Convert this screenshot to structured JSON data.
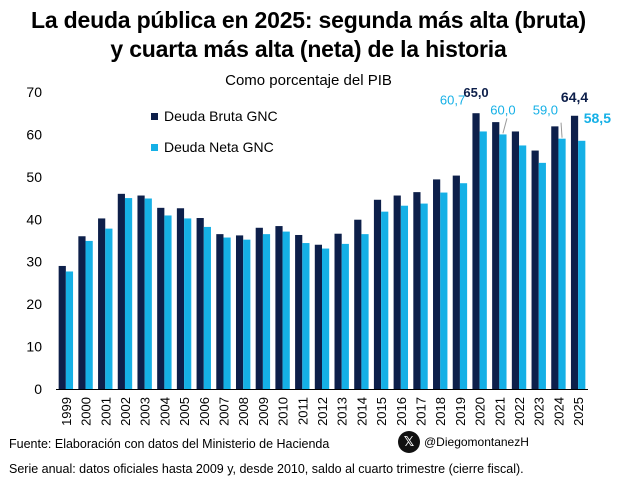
{
  "title_lines": [
    "La deuda pública en 2025: segunda más alta (bruta)",
    "y cuarta más alta (neta) de la historia"
  ],
  "subtitle": "Como porcentaje del PIB",
  "source": "Fuente: Elaboración con datos del Ministerio de Hacienda",
  "handle": "@DiegomontanezH",
  "handle_icon": "x-logo-icon",
  "note": "Serie anual: datos oficiales hasta 2009 y, desde 2010, saldo al cuarto trimestre (cierre fiscal).",
  "chart_data": {
    "type": "bar",
    "title": "La deuda pública en 2025: segunda más alta (bruta) y cuarta más alta (neta) de la historia",
    "subtitle": "Como porcentaje del PIB",
    "xlabel": "",
    "ylabel": "",
    "ylim": [
      0,
      70
    ],
    "yticks": [
      0,
      10,
      20,
      30,
      40,
      50,
      60,
      70
    ],
    "grid": false,
    "legend": "top-left",
    "categories": [
      "1999",
      "2000",
      "2001",
      "2002",
      "2003",
      "2004",
      "2005",
      "2006",
      "2007",
      "2008",
      "2009",
      "2010",
      "2011",
      "2012",
      "2013",
      "2014",
      "2015",
      "2016",
      "2017",
      "2018",
      "2019",
      "2020",
      "2021",
      "2022",
      "2023",
      "2024",
      "2025"
    ],
    "series": [
      {
        "name": "Deuda Bruta GNC",
        "color": "#0d1f4a",
        "values": [
          29.0,
          36.0,
          40.2,
          46.0,
          45.6,
          42.7,
          42.6,
          40.3,
          36.5,
          36.2,
          38.0,
          38.4,
          36.3,
          34.0,
          36.6,
          39.9,
          44.6,
          45.6,
          46.4,
          49.4,
          50.3,
          65.0,
          62.9,
          60.7,
          56.2,
          61.9,
          64.4
        ],
        "labels": {
          "2020": "65,0",
          "2025": "64,4"
        },
        "label_color": "#0d1f4a"
      },
      {
        "name": "Deuda Neta GNC",
        "color": "#15b0e6",
        "values": [
          27.7,
          34.9,
          37.8,
          45.0,
          44.9,
          40.9,
          40.2,
          38.2,
          35.7,
          35.2,
          36.5,
          37.1,
          34.4,
          33.1,
          34.2,
          36.5,
          41.8,
          43.2,
          43.7,
          46.3,
          48.5,
          60.7,
          60.0,
          57.4,
          53.3,
          59.0,
          58.5
        ],
        "labels": {
          "2020": "60,7",
          "2021": "60,0",
          "2024": "59,0",
          "2025": "58,5"
        },
        "label_color": "#15b0e6"
      }
    ]
  }
}
